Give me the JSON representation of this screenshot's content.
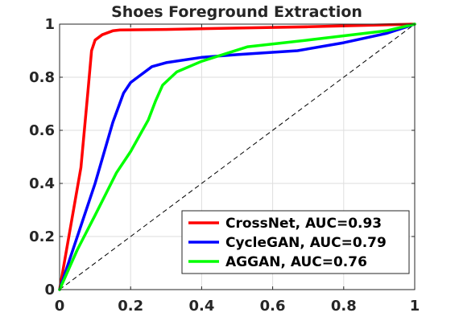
{
  "chart_data": {
    "type": "line",
    "title": "Shoes Foreground Extraction",
    "xlabel": "",
    "ylabel": "",
    "xlim": [
      0,
      1
    ],
    "ylim": [
      0,
      1
    ],
    "grid": true,
    "legend_position": "bottom-right",
    "x_ticks": [
      "0",
      "0.2",
      "0.4",
      "0.6",
      "0.8",
      "1"
    ],
    "y_ticks": [
      "0",
      "0.2",
      "0.4",
      "0.6",
      "0.8",
      "1"
    ],
    "reference_line": {
      "x": [
        0,
        1
      ],
      "y": [
        0,
        1
      ],
      "style": "dashed",
      "color": "#000000"
    },
    "series": [
      {
        "name": "CrossNet, AUC=0.93",
        "color": "#ff0000",
        "x": [
          0,
          0.06,
          0.08,
          0.09,
          0.1,
          0.12,
          0.15,
          0.17,
          0.3,
          0.5,
          0.7,
          1.0
        ],
        "y": [
          0,
          0.46,
          0.75,
          0.9,
          0.94,
          0.96,
          0.975,
          0.978,
          0.98,
          0.985,
          0.99,
          1.0
        ]
      },
      {
        "name": "CycleGAN, AUC=0.79",
        "color": "#0000ff",
        "x": [
          0,
          0.1,
          0.15,
          0.18,
          0.2,
          0.22,
          0.26,
          0.3,
          0.4,
          0.5,
          0.67,
          0.8,
          0.92,
          1.0
        ],
        "y": [
          0,
          0.4,
          0.63,
          0.74,
          0.78,
          0.8,
          0.84,
          0.855,
          0.875,
          0.885,
          0.9,
          0.93,
          0.965,
          1.0
        ]
      },
      {
        "name": "AGGAN, AUC=0.76",
        "color": "#00ff00",
        "x": [
          0,
          0.05,
          0.1,
          0.16,
          0.2,
          0.25,
          0.27,
          0.29,
          0.33,
          0.4,
          0.53,
          0.7,
          0.92,
          1.0
        ],
        "y": [
          0,
          0.15,
          0.28,
          0.44,
          0.52,
          0.64,
          0.71,
          0.77,
          0.82,
          0.86,
          0.915,
          0.94,
          0.975,
          1.0
        ]
      }
    ]
  }
}
